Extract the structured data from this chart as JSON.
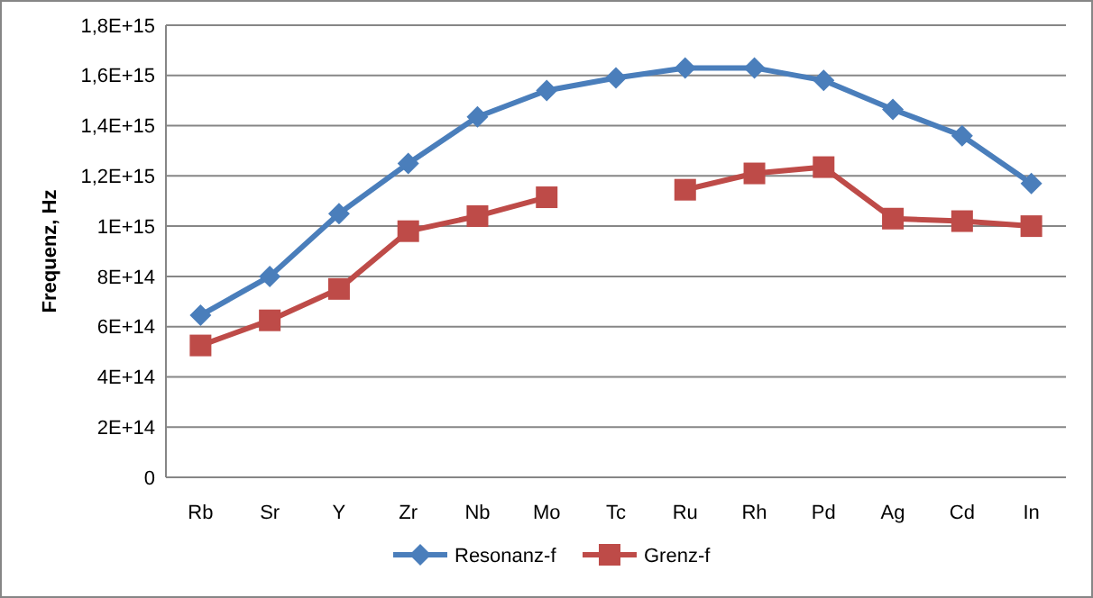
{
  "chart_data": {
    "type": "line",
    "ylabel": "Frequenz, Hz",
    "categories": [
      "Rb",
      "Sr",
      "Y",
      "Zr",
      "Nb",
      "Mo",
      "Tc",
      "Ru",
      "Rh",
      "Pd",
      "Ag",
      "Cd",
      "In"
    ],
    "series": [
      {
        "name": "Resonanz-f",
        "color": "#4a7ebb",
        "marker": "diamond",
        "values": [
          645000000000000.0,
          800000000000000.0,
          1050000000000000.0,
          1250000000000000.0,
          1435000000000000.0,
          1540000000000000.0,
          1590000000000000.0,
          1630000000000000.0,
          1630000000000000.0,
          1580000000000000.0,
          1465000000000000.0,
          1360000000000000.0,
          1170000000000000.0
        ]
      },
      {
        "name": "Grenz-f",
        "color": "#be4b48",
        "marker": "square",
        "values": [
          525000000000000.0,
          625000000000000.0,
          750000000000000.0,
          980000000000000.0,
          1040000000000000.0,
          1115000000000000.0,
          null,
          1145000000000000.0,
          1210000000000000.0,
          1235000000000000.0,
          1030000000000000.0,
          1020000000000000.0,
          1000000000000000.0
        ]
      }
    ],
    "ylim": [
      0,
      1800000000000000.0
    ],
    "yticks": [
      0,
      {
        "value": 200000000000000.0,
        "label": "2E+14"
      },
      {
        "value": 400000000000000.0,
        "label": "4E+14"
      },
      {
        "value": 600000000000000.0,
        "label": "6E+14"
      },
      {
        "value": 800000000000000.0,
        "label": "8E+14"
      },
      {
        "value": 1000000000000000.0,
        "label": "1E+15"
      },
      {
        "value": 1200000000000000.0,
        "label": "1,2E+15"
      },
      {
        "value": 1400000000000000.0,
        "label": "1,4E+15"
      },
      {
        "value": 1600000000000000.0,
        "label": "1,6E+15"
      },
      {
        "value": 1800000000000000.0,
        "label": "1,8E+15"
      }
    ],
    "grid": "y",
    "legend": "bottom",
    "line_style": "solid"
  }
}
